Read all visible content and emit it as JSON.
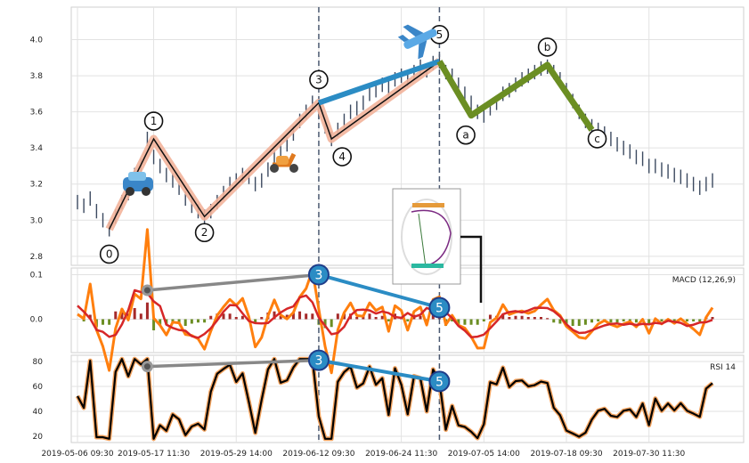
{
  "chart_data": [
    {
      "type": "candlestick",
      "panel": "price",
      "ylim": [
        2.75,
        4.18
      ],
      "yticks": [
        "2.8",
        "3.0",
        "3.2",
        "3.4",
        "3.6",
        "3.8",
        "4.0"
      ],
      "grid": true,
      "series": [
        {
          "x": [
            0,
            1,
            2,
            3,
            4,
            5,
            6,
            7,
            8,
            9,
            10,
            11,
            12,
            13,
            14,
            15,
            16,
            17,
            18,
            19,
            20,
            21,
            22,
            23,
            24,
            25,
            26,
            27,
            28,
            29,
            30,
            31,
            32,
            33,
            34,
            35,
            36,
            37,
            38,
            39,
            40,
            41,
            42,
            43,
            44,
            45,
            46,
            47,
            48,
            49,
            50,
            51,
            52,
            53,
            54,
            55,
            56,
            57,
            58,
            59,
            60,
            61,
            62,
            63,
            64,
            65,
            66,
            67,
            68,
            69,
            70,
            71,
            72,
            73,
            74,
            75,
            76,
            77,
            78,
            79,
            80,
            81,
            82,
            83,
            84,
            85,
            86,
            87,
            88,
            89,
            90,
            91,
            92,
            93,
            94,
            95,
            96,
            97,
            98,
            99,
            100
          ],
          "close": [
            3.1,
            3.08,
            3.12,
            3.05,
            3.0,
            2.95,
            3.02,
            3.1,
            3.15,
            3.25,
            3.3,
            3.45,
            3.35,
            3.3,
            3.25,
            3.22,
            3.18,
            3.12,
            3.08,
            3.05,
            3.02,
            3.05,
            3.1,
            3.15,
            3.2,
            3.22,
            3.25,
            3.24,
            3.2,
            3.22,
            3.28,
            3.35,
            3.38,
            3.42,
            3.48,
            3.55,
            3.6,
            3.65,
            3.6,
            3.52,
            3.45,
            3.5,
            3.55,
            3.6,
            3.62,
            3.65,
            3.7,
            3.72,
            3.75,
            3.73,
            3.78,
            3.8,
            3.78,
            3.82,
            3.85,
            3.83,
            3.87,
            3.88,
            3.82,
            3.8,
            3.75,
            3.7,
            3.65,
            3.6,
            3.58,
            3.62,
            3.65,
            3.7,
            3.72,
            3.75,
            3.78,
            3.8,
            3.82,
            3.84,
            3.85,
            3.82,
            3.78,
            3.72,
            3.66,
            3.6,
            3.55,
            3.52,
            3.5,
            3.48,
            3.45,
            3.42,
            3.4,
            3.38,
            3.35,
            3.34,
            3.3,
            3.3,
            3.28,
            3.27,
            3.25,
            3.24,
            3.22,
            3.2,
            3.18,
            3.2,
            3.22
          ]
        }
      ],
      "elliott_impulse": {
        "labels": [
          "0",
          "1",
          "2",
          "3",
          "4",
          "5"
        ],
        "x": [
          5,
          12,
          20,
          38,
          40,
          57
        ],
        "y": [
          2.95,
          3.45,
          3.02,
          3.65,
          3.45,
          3.88
        ]
      },
      "elliott_correction": {
        "labels": [
          "a",
          "b",
          "c"
        ],
        "x": [
          62,
          74,
          81
        ],
        "y": [
          3.58,
          3.86,
          3.5
        ]
      },
      "trend_segments": [
        {
          "from": "3",
          "to": "5",
          "color": "#2b8cc4"
        }
      ],
      "annotations": {
        "wave_markers": [
          "car-icon",
          "scooter-icon",
          "airplane-icon"
        ]
      }
    },
    {
      "type": "line",
      "panel": "macd",
      "title": "MACD (12,26,9)",
      "ylim": [
        -0.075,
        0.115
      ],
      "yticks": [
        "0.1",
        "0.0"
      ],
      "grid": true,
      "series": [
        {
          "name": "macd",
          "color": "#ff7f0e"
        },
        {
          "name": "signal",
          "color": "#d62728"
        }
      ],
      "divergence": {
        "labels": [
          "3",
          "5"
        ],
        "x": [
          38,
          57
        ],
        "y": [
          0.1,
          0.026
        ]
      },
      "aux_point": {
        "x": 11,
        "y": 0.065
      }
    },
    {
      "type": "line",
      "panel": "rsi",
      "title": "RSI 14",
      "ylim": [
        15,
        85
      ],
      "yticks": [
        "80",
        "60",
        "40",
        "20"
      ],
      "grid": true,
      "series": [
        {
          "name": "rsi",
          "color": "#000000"
        }
      ],
      "divergence": {
        "labels": [
          "3",
          "5"
        ],
        "x": [
          38,
          57
        ],
        "y": [
          81,
          64
        ]
      },
      "aux_point": {
        "x": 11,
        "y": 76
      }
    }
  ],
  "xaxis": {
    "tick_labels": [
      "2019-05-06 09:30",
      "2019-05-17 11:30",
      "2019-05-29 14:00",
      "2019-06-12 09:30",
      "2019-06-24 11:30",
      "2019-07-05 14:00",
      "2019-07-18 09:30",
      "2019-07-30 11:30"
    ],
    "tick_index": [
      0,
      12,
      25,
      38,
      51,
      64,
      77,
      90
    ],
    "count": 101,
    "vlines": [
      38,
      57
    ]
  }
}
